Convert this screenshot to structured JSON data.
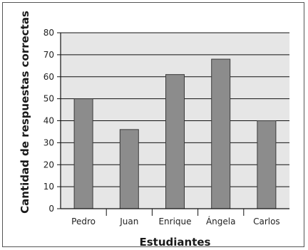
{
  "chart_data": {
    "type": "bar",
    "xlabel": "Estudiantes",
    "ylabel": "Cantidad de respuestas correctas",
    "categories": [
      "Pedro",
      "Juan",
      "Enrique",
      "Ángela",
      "Carlos"
    ],
    "values": [
      50,
      36,
      61,
      68,
      40
    ],
    "ylim": [
      0,
      80
    ],
    "yticks": [
      0,
      10,
      20,
      30,
      40,
      50,
      60,
      70,
      80
    ],
    "grid": true,
    "colors": {
      "bar_fill": "#8c8c8c",
      "bar_stroke": "#3a3a3a",
      "plot_background": "#e6e6e6",
      "gridline": "#111111",
      "axis": "#111111"
    }
  }
}
